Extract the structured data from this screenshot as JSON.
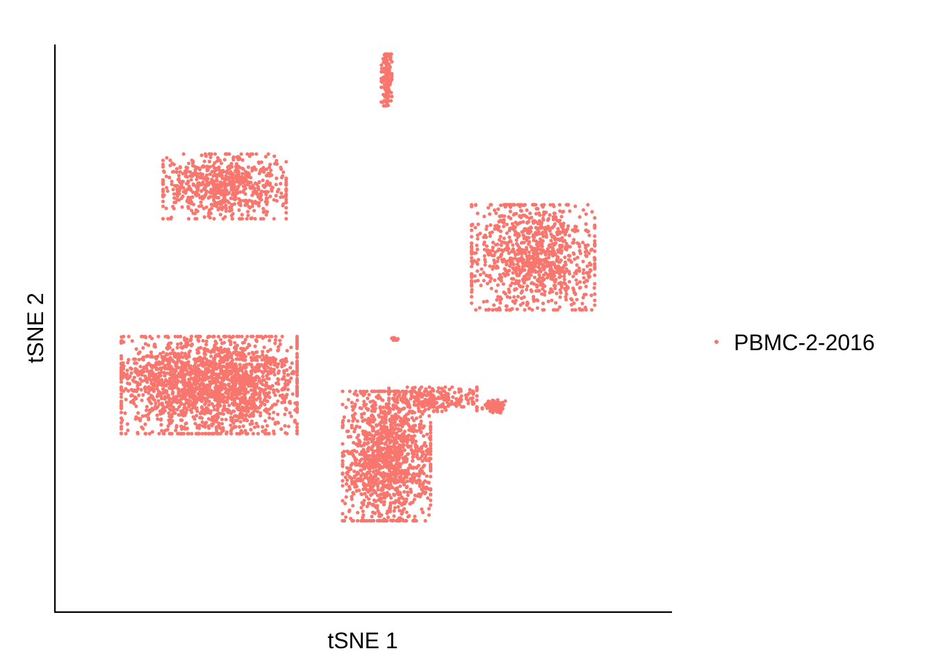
{
  "chart_data": {
    "type": "scatter",
    "title": "",
    "xlabel": "tSNE 1",
    "ylabel": "tSNE 2",
    "xlim": [
      -40,
      40
    ],
    "ylim": [
      -40,
      40
    ],
    "ticks_shown": false,
    "grid": false,
    "legend_position": "right",
    "point_color": "#F8766D",
    "series": [
      {
        "name": "PBMC-2-2016",
        "color": "#F8766D",
        "approx_point_count": 5800,
        "clusters": [
          {
            "label": "upper-left",
            "center": [
              -18,
              20
            ],
            "spread": [
              7,
              4
            ],
            "count": 700
          },
          {
            "label": "right",
            "center": [
              22,
              10
            ],
            "spread": [
              7,
              6.5
            ],
            "count": 1000
          },
          {
            "label": "top-narrow",
            "center": [
              3,
              35
            ],
            "spread": [
              0.6,
              3.2
            ],
            "count": 150
          },
          {
            "label": "lower-left",
            "center": [
              -20,
              -8
            ],
            "spread": [
              10,
              6
            ],
            "count": 2000
          },
          {
            "label": "lower-center",
            "center": [
              3,
              -18
            ],
            "spread": [
              5,
              8
            ],
            "count": 1300
          },
          {
            "label": "small-right-blob",
            "center": [
              17,
              -11
            ],
            "spread": [
              1.4,
              0.8
            ],
            "count": 80
          },
          {
            "label": "bridge",
            "center": [
              9,
              -10
            ],
            "spread": [
              5,
              1.5
            ],
            "count": 250
          },
          {
            "label": "tiny-mid",
            "center": [
              4,
              -1.5
            ],
            "spread": [
              0.4,
              0.2
            ],
            "count": 15
          }
        ]
      }
    ]
  }
}
